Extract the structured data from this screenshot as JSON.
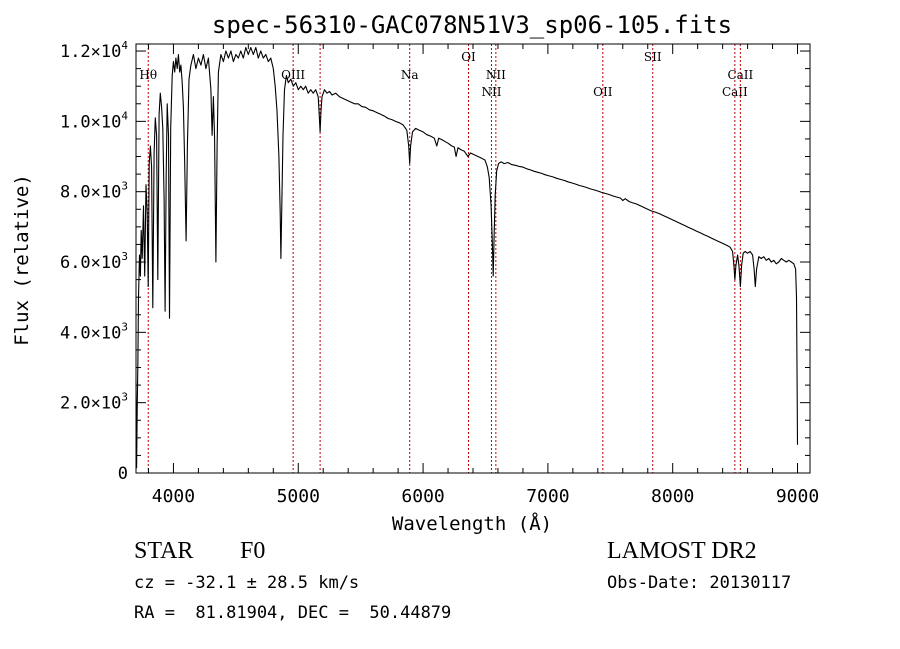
{
  "chart_data": {
    "type": "line",
    "title": "spec-56310-GAC078N51V3_sp06-105.fits",
    "xlabel": "Wavelength (Å)",
    "ylabel": "Flux (relative)",
    "xlim": [
      3700,
      9100
    ],
    "ylim": [
      0,
      12200
    ],
    "grid": false,
    "x_ticks": [
      {
        "value": 4000,
        "label": "4000"
      },
      {
        "value": 5000,
        "label": "5000"
      },
      {
        "value": 6000,
        "label": "6000"
      },
      {
        "value": 7000,
        "label": "7000"
      },
      {
        "value": 8000,
        "label": "8000"
      },
      {
        "value": 9000,
        "label": "9000"
      }
    ],
    "y_ticks": [
      {
        "value": 0,
        "mant": "0",
        "exp": ""
      },
      {
        "value": 2000,
        "mant": "2.0×10",
        "exp": "3"
      },
      {
        "value": 4000,
        "mant": "4.0×10",
        "exp": "3"
      },
      {
        "value": 6000,
        "mant": "6.0×10",
        "exp": "3"
      },
      {
        "value": 8000,
        "mant": "8.0×10",
        "exp": "3"
      },
      {
        "value": 10000,
        "mant": "1.0×10",
        "exp": "4"
      },
      {
        "value": 12000,
        "mant": "1.2×10",
        "exp": "4"
      }
    ],
    "line_markers": [
      {
        "label": "Hθ",
        "x": 3798,
        "row": 0
      },
      {
        "label": "OIII",
        "x": 4959,
        "row": 0
      },
      {
        "label": "",
        "x": 5175,
        "row": 0
      },
      {
        "label": "Na",
        "x": 5893,
        "row": 0
      },
      {
        "label": "OI",
        "x": 6364,
        "row": -1
      },
      {
        "label": "NII",
        "x": 6548,
        "row": 1
      },
      {
        "label": "NII",
        "x": 6583,
        "row": 0
      },
      {
        "label": "OII",
        "x": 7440,
        "row": 1
      },
      {
        "label": "SII",
        "x": 7840,
        "row": -1
      },
      {
        "label": "CaII",
        "x": 8498,
        "row": 1
      },
      {
        "label": "CaII",
        "x": 8542,
        "row": 0
      }
    ],
    "marker_color": "#c00000",
    "series": [
      {
        "name": "",
        "color": "#000000",
        "points": [
          [
            3700,
            2600
          ],
          [
            3705,
            150
          ],
          [
            3710,
            1800
          ],
          [
            3715,
            3200
          ],
          [
            3720,
            5000
          ],
          [
            3728,
            6200
          ],
          [
            3735,
            5600
          ],
          [
            3742,
            6900
          ],
          [
            3750,
            6100
          ],
          [
            3760,
            7600
          ],
          [
            3770,
            5600
          ],
          [
            3780,
            8200
          ],
          [
            3790,
            7400
          ],
          [
            3798,
            5300
          ],
          [
            3806,
            8800
          ],
          [
            3815,
            9300
          ],
          [
            3825,
            8700
          ],
          [
            3835,
            4700
          ],
          [
            3845,
            9100
          ],
          [
            3855,
            10100
          ],
          [
            3865,
            9600
          ],
          [
            3875,
            5500
          ],
          [
            3885,
            10200
          ],
          [
            3895,
            10800
          ],
          [
            3905,
            10400
          ],
          [
            3915,
            9800
          ],
          [
            3925,
            7800
          ],
          [
            3933,
            4600
          ],
          [
            3942,
            8500
          ],
          [
            3950,
            10500
          ],
          [
            3960,
            9600
          ],
          [
            3968,
            4400
          ],
          [
            3978,
            9800
          ],
          [
            3990,
            11300
          ],
          [
            4000,
            11700
          ],
          [
            4010,
            11400
          ],
          [
            4020,
            11800
          ],
          [
            4030,
            11500
          ],
          [
            4040,
            11900
          ],
          [
            4050,
            11400
          ],
          [
            4060,
            11600
          ],
          [
            4070,
            11100
          ],
          [
            4080,
            10400
          ],
          [
            4090,
            8800
          ],
          [
            4101,
            6600
          ],
          [
            4112,
            9300
          ],
          [
            4125,
            11200
          ],
          [
            4140,
            11600
          ],
          [
            4160,
            11900
          ],
          [
            4180,
            11500
          ],
          [
            4200,
            11800
          ],
          [
            4220,
            11600
          ],
          [
            4240,
            11900
          ],
          [
            4260,
            11500
          ],
          [
            4280,
            11800
          ],
          [
            4300,
            10900
          ],
          [
            4310,
            9600
          ],
          [
            4320,
            10700
          ],
          [
            4330,
            9500
          ],
          [
            4340,
            6000
          ],
          [
            4350,
            9300
          ],
          [
            4360,
            11400
          ],
          [
            4380,
            11900
          ],
          [
            4400,
            11700
          ],
          [
            4420,
            12000
          ],
          [
            4440,
            11800
          ],
          [
            4460,
            12000
          ],
          [
            4480,
            11700
          ],
          [
            4500,
            11900
          ],
          [
            4520,
            11800
          ],
          [
            4540,
            12000
          ],
          [
            4560,
            11800
          ],
          [
            4580,
            12100
          ],
          [
            4600,
            11900
          ],
          [
            4620,
            12100
          ],
          [
            4640,
            11900
          ],
          [
            4660,
            12100
          ],
          [
            4680,
            11800
          ],
          [
            4700,
            12000
          ],
          [
            4720,
            11800
          ],
          [
            4740,
            11900
          ],
          [
            4760,
            11700
          ],
          [
            4780,
            11800
          ],
          [
            4800,
            11500
          ],
          [
            4815,
            11000
          ],
          [
            4830,
            10300
          ],
          [
            4845,
            9000
          ],
          [
            4855,
            7400
          ],
          [
            4861,
            6100
          ],
          [
            4868,
            7600
          ],
          [
            4878,
            9600
          ],
          [
            4890,
            10900
          ],
          [
            4905,
            11300
          ],
          [
            4920,
            11100
          ],
          [
            4940,
            11200
          ],
          [
            4960,
            11000
          ],
          [
            4980,
            11100
          ],
          [
            5000,
            10900
          ],
          [
            5020,
            11000
          ],
          [
            5040,
            10900
          ],
          [
            5060,
            11000
          ],
          [
            5080,
            10800
          ],
          [
            5100,
            10900
          ],
          [
            5120,
            10800
          ],
          [
            5140,
            10900
          ],
          [
            5160,
            10700
          ],
          [
            5168,
            10200
          ],
          [
            5175,
            9700
          ],
          [
            5182,
            10300
          ],
          [
            5190,
            10700
          ],
          [
            5210,
            10900
          ],
          [
            5230,
            10800
          ],
          [
            5250,
            10850
          ],
          [
            5270,
            10750
          ],
          [
            5300,
            10800
          ],
          [
            5330,
            10700
          ],
          [
            5360,
            10650
          ],
          [
            5390,
            10600
          ],
          [
            5420,
            10550
          ],
          [
            5450,
            10500
          ],
          [
            5480,
            10500
          ],
          [
            5510,
            10420
          ],
          [
            5540,
            10400
          ],
          [
            5570,
            10330
          ],
          [
            5600,
            10300
          ],
          [
            5630,
            10250
          ],
          [
            5660,
            10200
          ],
          [
            5690,
            10150
          ],
          [
            5720,
            10080
          ],
          [
            5750,
            10050
          ],
          [
            5780,
            10000
          ],
          [
            5810,
            9960
          ],
          [
            5840,
            9900
          ],
          [
            5870,
            9750
          ],
          [
            5885,
            9300
          ],
          [
            5893,
            8800
          ],
          [
            5900,
            9300
          ],
          [
            5915,
            9700
          ],
          [
            5940,
            9800
          ],
          [
            5970,
            9750
          ],
          [
            6000,
            9700
          ],
          [
            6030,
            9620
          ],
          [
            6060,
            9580
          ],
          [
            6090,
            9520
          ],
          [
            6110,
            9300
          ],
          [
            6125,
            9520
          ],
          [
            6150,
            9480
          ],
          [
            6180,
            9420
          ],
          [
            6200,
            9380
          ],
          [
            6230,
            9300
          ],
          [
            6250,
            9270
          ],
          [
            6265,
            9000
          ],
          [
            6280,
            9250
          ],
          [
            6300,
            9200
          ],
          [
            6330,
            9150
          ],
          [
            6360,
            9000
          ],
          [
            6380,
            9100
          ],
          [
            6410,
            9050
          ],
          [
            6440,
            9000
          ],
          [
            6470,
            8950
          ],
          [
            6495,
            8900
          ],
          [
            6515,
            8700
          ],
          [
            6530,
            8400
          ],
          [
            6545,
            7600
          ],
          [
            6556,
            6400
          ],
          [
            6562,
            5600
          ],
          [
            6568,
            6600
          ],
          [
            6578,
            7900
          ],
          [
            6590,
            8600
          ],
          [
            6605,
            8800
          ],
          [
            6625,
            8850
          ],
          [
            6650,
            8800
          ],
          [
            6680,
            8830
          ],
          [
            6710,
            8770
          ],
          [
            6740,
            8750
          ],
          [
            6770,
            8720
          ],
          [
            6800,
            8700
          ],
          [
            6830,
            8650
          ],
          [
            6860,
            8620
          ],
          [
            6890,
            8580
          ],
          [
            6920,
            8550
          ],
          [
            6950,
            8520
          ],
          [
            6980,
            8480
          ],
          [
            7010,
            8450
          ],
          [
            7040,
            8420
          ],
          [
            7070,
            8380
          ],
          [
            7100,
            8350
          ],
          [
            7130,
            8320
          ],
          [
            7160,
            8280
          ],
          [
            7190,
            8250
          ],
          [
            7220,
            8220
          ],
          [
            7250,
            8180
          ],
          [
            7280,
            8150
          ],
          [
            7310,
            8120
          ],
          [
            7340,
            8080
          ],
          [
            7370,
            8050
          ],
          [
            7400,
            8020
          ],
          [
            7430,
            7980
          ],
          [
            7460,
            7950
          ],
          [
            7490,
            7920
          ],
          [
            7520,
            7880
          ],
          [
            7550,
            7850
          ],
          [
            7580,
            7820
          ],
          [
            7600,
            7750
          ],
          [
            7620,
            7800
          ],
          [
            7650,
            7720
          ],
          [
            7680,
            7680
          ],
          [
            7710,
            7650
          ],
          [
            7740,
            7600
          ],
          [
            7770,
            7550
          ],
          [
            7800,
            7500
          ],
          [
            7830,
            7450
          ],
          [
            7860,
            7420
          ],
          [
            7890,
            7380
          ],
          [
            7920,
            7330
          ],
          [
            7950,
            7280
          ],
          [
            7980,
            7230
          ],
          [
            8010,
            7180
          ],
          [
            8040,
            7130
          ],
          [
            8070,
            7080
          ],
          [
            8100,
            7030
          ],
          [
            8130,
            6980
          ],
          [
            8160,
            6930
          ],
          [
            8190,
            6880
          ],
          [
            8220,
            6830
          ],
          [
            8250,
            6780
          ],
          [
            8280,
            6730
          ],
          [
            8310,
            6680
          ],
          [
            8340,
            6630
          ],
          [
            8370,
            6580
          ],
          [
            8400,
            6530
          ],
          [
            8430,
            6480
          ],
          [
            8460,
            6420
          ],
          [
            8480,
            6300
          ],
          [
            8490,
            5900
          ],
          [
            8498,
            5500
          ],
          [
            8506,
            5900
          ],
          [
            8520,
            6200
          ],
          [
            8530,
            5900
          ],
          [
            8542,
            5300
          ],
          [
            8552,
            5900
          ],
          [
            8565,
            6250
          ],
          [
            8580,
            6300
          ],
          [
            8600,
            6250
          ],
          [
            8620,
            6300
          ],
          [
            8640,
            6200
          ],
          [
            8652,
            5800
          ],
          [
            8662,
            5300
          ],
          [
            8672,
            5800
          ],
          [
            8690,
            6150
          ],
          [
            8710,
            6100
          ],
          [
            8730,
            6150
          ],
          [
            8750,
            6050
          ],
          [
            8770,
            6100
          ],
          [
            8790,
            6000
          ],
          [
            8810,
            6050
          ],
          [
            8830,
            5950
          ],
          [
            8850,
            6000
          ],
          [
            8870,
            6100
          ],
          [
            8890,
            6050
          ],
          [
            8910,
            6000
          ],
          [
            8930,
            6050
          ],
          [
            8950,
            6000
          ],
          [
            8970,
            5950
          ],
          [
            8985,
            5800
          ],
          [
            8992,
            5000
          ],
          [
            8996,
            3000
          ],
          [
            9000,
            800
          ]
        ]
      }
    ]
  },
  "info": {
    "object_class": "STAR",
    "subclass": "F0",
    "survey": "LAMOST DR2",
    "redshift": "cz = -32.1 ± 28.5 km/s",
    "obs_date": "Obs-Date: 20130117",
    "coords": "RA =  81.81904, DEC =  50.44879"
  }
}
